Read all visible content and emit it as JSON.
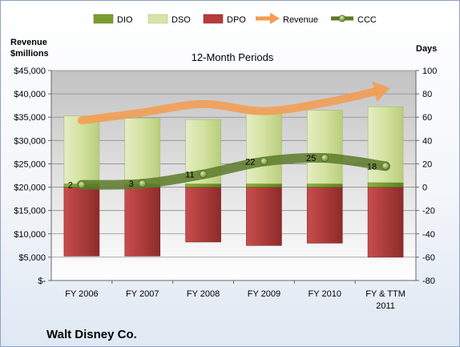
{
  "chart_data": {
    "type": "bar",
    "title": "12-Month Periods",
    "company": "Walt Disney Co.",
    "left_axis_title_line1": "Revenue",
    "left_axis_title_line2": "$millions",
    "right_axis_title": "Days",
    "categories": [
      "FY 2006",
      "FY 2007",
      "FY 2008",
      "FY 2009",
      "FY 2010",
      "FY & TTM"
    ],
    "category_sublabels": [
      "",
      "",
      "",
      "",
      "",
      "2011"
    ],
    "left_ticks": [
      "$-",
      "$5,000",
      "$10,000",
      "$15,000",
      "$20,000",
      "$25,000",
      "$30,000",
      "$35,000",
      "$40,000",
      "$45,000"
    ],
    "ylim_left": [
      0,
      45000
    ],
    "right_ticks": [
      "-80",
      "-60",
      "-40",
      "-20",
      "0",
      "20",
      "40",
      "60",
      "80",
      "100"
    ],
    "ylim_right": [
      -80,
      100
    ],
    "gridlines": true,
    "legend_position": "top",
    "series": [
      {
        "name": "DIO",
        "kind": "stacked-bar",
        "color": "#7a9e2e",
        "values": [
          3,
          3,
          3,
          3,
          3,
          4
        ]
      },
      {
        "name": "DSO",
        "kind": "stacked-bar",
        "color": "#d7e4a8",
        "values": [
          58,
          56,
          55,
          60,
          63,
          65
        ]
      },
      {
        "name": "DPO",
        "kind": "negative-bar",
        "color": "#b73b3a",
        "values": [
          -59,
          -59,
          -47,
          -50,
          -48,
          -60
        ]
      },
      {
        "name": "Revenue",
        "kind": "arrow-line",
        "color": "#f59b4e",
        "values": [
          34300,
          36000,
          37800,
          36300,
          38100,
          41000
        ]
      },
      {
        "name": "CCC",
        "kind": "line",
        "color": "#5c7a2a",
        "values": [
          2,
          3,
          11,
          22,
          25,
          18
        ]
      }
    ],
    "data_labels": [
      "2",
      "3",
      "11",
      "22",
      "25",
      "18"
    ]
  }
}
